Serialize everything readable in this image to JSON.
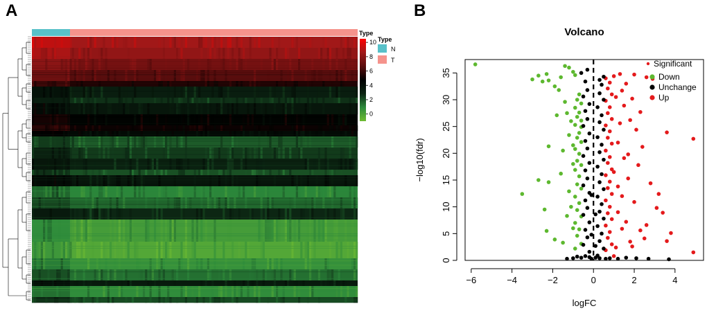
{
  "panels": {
    "a": "A",
    "b": "B"
  },
  "chart_data": [
    {
      "type": "heatmap",
      "panel": "A",
      "annotation_title": "Type",
      "groups": [
        {
          "name": "N",
          "color": "#58C1C9",
          "share": 0.117
        },
        {
          "name": "T",
          "color": "#F5938C",
          "share": 0.883
        }
      ],
      "colorbar": {
        "title": "Type",
        "ticks": [
          10,
          8,
          6,
          4,
          2,
          0
        ],
        "range": [
          -1,
          10.5
        ],
        "colors": [
          "#6FBB33",
          "#2C8A3C",
          "#0B2412",
          "#000000",
          "#5A0D0D",
          "#A01818",
          "#FF0000"
        ]
      },
      "gene_bands": [
        {
          "level": 8.6,
          "weight": 2
        },
        {
          "level": 8.2,
          "weight": 2
        },
        {
          "level": 7.4,
          "weight": 2
        },
        {
          "level": 6.6,
          "weight": 2
        },
        {
          "level": 5.4,
          "weight": 1
        },
        {
          "level": 3.2,
          "weight": 2
        },
        {
          "level": 2.6,
          "weight": 1
        },
        {
          "level": 3.6,
          "weight": 2
        },
        {
          "level": 4.6,
          "weight": 2
        },
        {
          "level": 5.0,
          "weight": 1
        },
        {
          "level": 4.2,
          "weight": 1
        },
        {
          "level": 1.8,
          "weight": 2
        },
        {
          "level": 2.4,
          "weight": 2
        },
        {
          "level": 3.0,
          "weight": 2
        },
        {
          "level": 2.0,
          "weight": 1
        },
        {
          "level": 3.6,
          "weight": 2
        },
        {
          "level": 1.0,
          "weight": 2
        },
        {
          "level": 1.6,
          "weight": 2
        },
        {
          "level": 2.8,
          "weight": 2
        },
        {
          "level": 0.2,
          "weight": 4
        },
        {
          "level": -0.2,
          "weight": 3
        },
        {
          "level": 0.6,
          "weight": 2
        },
        {
          "level": 1.4,
          "weight": 2
        },
        {
          "level": 3.4,
          "weight": 1
        },
        {
          "level": 0.8,
          "weight": 2
        },
        {
          "level": 2.2,
          "weight": 1
        }
      ]
    },
    {
      "type": "scatter",
      "panel": "B",
      "title": "Volcano",
      "xlabel": "logFC",
      "ylabel": "−log10(fdr)",
      "xlim": [
        -6.3,
        5.4
      ],
      "ylim": [
        0,
        37.5
      ],
      "xticks": [
        -6,
        -4,
        -2,
        0,
        2,
        4
      ],
      "yticks": [
        0,
        5,
        10,
        15,
        20,
        25,
        30,
        35
      ],
      "cutoff_x": 0,
      "legend": {
        "position": "top-right",
        "title": "Significant",
        "items": [
          {
            "label": "Down",
            "color": "#5DB82F"
          },
          {
            "label": "Unchange",
            "color": "#000000"
          },
          {
            "label": "Up",
            "color": "#E41A1C"
          }
        ]
      },
      "series": [
        {
          "name": "Down",
          "color": "#5DB82F",
          "points": [
            [
              -5.8,
              36.6
            ],
            [
              -3.0,
              33.8
            ],
            [
              -2.7,
              34.5
            ],
            [
              -2.5,
              33.4
            ],
            [
              -2.3,
              34.8
            ],
            [
              -2.2,
              33.6
            ],
            [
              -1.9,
              32.5
            ],
            [
              -1.6,
              34.2
            ],
            [
              -1.4,
              36.3
            ],
            [
              -1.2,
              36.0
            ],
            [
              -1.0,
              35.2
            ],
            [
              -0.9,
              34.6
            ],
            [
              -1.7,
              31.8
            ],
            [
              -1.8,
              27.1
            ],
            [
              -2.2,
              21.3
            ],
            [
              -1.5,
              20.5
            ],
            [
              -1.6,
              16.2
            ],
            [
              -2.2,
              14.6
            ],
            [
              -2.7,
              15.0
            ],
            [
              -2.4,
              9.5
            ],
            [
              -2.3,
              5.5
            ],
            [
              -1.9,
              3.9
            ],
            [
              -1.5,
              3.3
            ],
            [
              -1.2,
              12.9
            ],
            [
              -3.5,
              12.4
            ],
            [
              -1.3,
              27.5
            ],
            [
              -1.0,
              21.5
            ],
            [
              -0.6,
              24.9
            ],
            [
              -0.7,
              31.0
            ],
            [
              -0.8,
              30.0
            ],
            [
              -0.6,
              29.3
            ],
            [
              -0.9,
              28.5
            ],
            [
              -0.7,
              27.6
            ],
            [
              -0.8,
              26.8
            ],
            [
              -0.6,
              26.1
            ],
            [
              -0.9,
              25.3
            ],
            [
              -0.7,
              23.8
            ],
            [
              -0.8,
              22.9
            ],
            [
              -0.6,
              22.1
            ],
            [
              -0.9,
              20.8
            ],
            [
              -0.7,
              19.9
            ],
            [
              -0.8,
              18.6
            ],
            [
              -0.6,
              17.8
            ],
            [
              -0.9,
              16.9
            ],
            [
              -0.7,
              15.7
            ],
            [
              -0.8,
              14.2
            ],
            [
              -0.6,
              13.4
            ],
            [
              -0.9,
              11.9
            ],
            [
              -0.7,
              10.7
            ],
            [
              -0.8,
              9.4
            ],
            [
              -0.6,
              8.2
            ],
            [
              -0.9,
              7.0
            ],
            [
              -0.7,
              5.8
            ],
            [
              -0.8,
              4.6
            ],
            [
              -0.6,
              3.1
            ],
            [
              -0.9,
              2.2
            ],
            [
              -1.1,
              26.0
            ],
            [
              -1.0,
              18.0
            ],
            [
              -1.1,
              10.0
            ],
            [
              -1.0,
              6.0
            ],
            [
              -1.3,
              8.3
            ],
            [
              -1.2,
              23.4
            ],
            [
              -1.4,
              29.6
            ]
          ]
        },
        {
          "name": "Up",
          "color": "#E41A1C",
          "points": [
            [
              4.9,
              22.7
            ],
            [
              4.9,
              1.5
            ],
            [
              3.8,
              5.1
            ],
            [
              3.6,
              3.6
            ],
            [
              3.6,
              23.9
            ],
            [
              3.4,
              8.9
            ],
            [
              3.2,
              12.4
            ],
            [
              2.9,
              33.9
            ],
            [
              2.8,
              14.4
            ],
            [
              3.1,
              9.8
            ],
            [
              2.6,
              6.6
            ],
            [
              2.5,
              4.1
            ],
            [
              2.3,
              5.6
            ],
            [
              2.0,
              34.7
            ],
            [
              2.6,
              34.2
            ],
            [
              2.1,
              24.4
            ],
            [
              2.2,
              17.8
            ],
            [
              2.0,
              10.9
            ],
            [
              1.9,
              2.6
            ],
            [
              1.7,
              19.8
            ],
            [
              1.5,
              28.9
            ],
            [
              1.4,
              12.0
            ],
            [
              1.6,
              7.2
            ],
            [
              1.8,
              26.2
            ],
            [
              1.6,
              33.0
            ],
            [
              1.3,
              34.8
            ],
            [
              1.0,
              34.4
            ],
            [
              0.6,
              34.0
            ],
            [
              0.8,
              33.2
            ],
            [
              0.7,
              32.1
            ],
            [
              0.9,
              31.0
            ],
            [
              0.6,
              29.8
            ],
            [
              0.8,
              28.6
            ],
            [
              0.7,
              27.5
            ],
            [
              0.9,
              26.4
            ],
            [
              0.6,
              25.2
            ],
            [
              0.8,
              24.1
            ],
            [
              0.7,
              22.9
            ],
            [
              0.9,
              21.8
            ],
            [
              0.6,
              20.5
            ],
            [
              0.8,
              19.3
            ],
            [
              0.7,
              18.2
            ],
            [
              0.9,
              17.0
            ],
            [
              0.6,
              15.9
            ],
            [
              0.8,
              14.7
            ],
            [
              0.7,
              13.5
            ],
            [
              0.9,
              12.4
            ],
            [
              0.6,
              11.2
            ],
            [
              0.8,
              10.0
            ],
            [
              0.7,
              8.8
            ],
            [
              0.9,
              7.7
            ],
            [
              0.6,
              6.5
            ],
            [
              0.8,
              5.3
            ],
            [
              0.7,
              4.2
            ],
            [
              0.9,
              3.0
            ],
            [
              0.6,
              1.9
            ],
            [
              1.1,
              30.5
            ],
            [
              1.2,
              22.0
            ],
            [
              1.0,
              16.5
            ],
            [
              1.2,
              9.0
            ],
            [
              1.1,
              2.4
            ],
            [
              1.4,
              31.7
            ],
            [
              1.3,
              25.6
            ],
            [
              1.5,
              19.1
            ],
            [
              1.2,
              13.8
            ],
            [
              1.4,
              5.9
            ],
            [
              1.7,
              15.3
            ],
            [
              1.9,
              30.2
            ],
            [
              2.3,
              27.7
            ],
            [
              2.4,
              21.2
            ],
            [
              1.8,
              3.5
            ],
            [
              1.0,
              0.8
            ]
          ]
        },
        {
          "name": "Unchange",
          "color": "#000000",
          "points": [
            [
              -0.4,
              33.4
            ],
            [
              -0.3,
              31.8
            ],
            [
              -0.5,
              30.6
            ],
            [
              -0.2,
              29.2
            ],
            [
              -0.4,
              27.9
            ],
            [
              -0.3,
              26.4
            ],
            [
              -0.5,
              25.1
            ],
            [
              -0.2,
              23.7
            ],
            [
              -0.4,
              22.3
            ],
            [
              -0.3,
              20.9
            ],
            [
              -0.5,
              19.5
            ],
            [
              -0.2,
              18.2
            ],
            [
              -0.4,
              16.8
            ],
            [
              -0.3,
              15.3
            ],
            [
              -0.5,
              14.0
            ],
            [
              -0.2,
              12.6
            ],
            [
              -0.4,
              11.2
            ],
            [
              -0.3,
              9.8
            ],
            [
              -0.5,
              8.5
            ],
            [
              -0.2,
              7.1
            ],
            [
              -0.4,
              5.7
            ],
            [
              -0.3,
              4.3
            ],
            [
              -0.5,
              2.9
            ],
            [
              -0.2,
              1.6
            ],
            [
              0.4,
              32.8
            ],
            [
              0.3,
              31.2
            ],
            [
              0.5,
              30.0
            ],
            [
              0.2,
              28.6
            ],
            [
              0.4,
              27.1
            ],
            [
              0.3,
              25.8
            ],
            [
              0.5,
              24.4
            ],
            [
              0.2,
              23.0
            ],
            [
              0.4,
              21.6
            ],
            [
              0.3,
              20.2
            ],
            [
              0.5,
              18.8
            ],
            [
              0.2,
              17.5
            ],
            [
              0.4,
              16.1
            ],
            [
              0.3,
              14.6
            ],
            [
              0.5,
              13.3
            ],
            [
              0.2,
              11.9
            ],
            [
              0.4,
              10.5
            ],
            [
              0.3,
              9.1
            ],
            [
              0.5,
              7.8
            ],
            [
              0.2,
              6.4
            ],
            [
              0.4,
              5.0
            ],
            [
              0.3,
              3.6
            ],
            [
              0.5,
              2.2
            ],
            [
              0.2,
              0.9
            ],
            [
              -0.1,
              0.3
            ],
            [
              0.1,
              0.5
            ],
            [
              -0.2,
              0.6
            ],
            [
              0.3,
              0.4
            ],
            [
              -0.4,
              0.8
            ],
            [
              0.6,
              0.3
            ],
            [
              -0.6,
              0.5
            ],
            [
              0.8,
              0.4
            ],
            [
              -0.8,
              0.7
            ],
            [
              1.2,
              0.3
            ],
            [
              1.6,
              0.5
            ],
            [
              2.1,
              0.4
            ],
            [
              2.7,
              0.3
            ],
            [
              3.7,
              0.2
            ],
            [
              -1.0,
              0.4
            ],
            [
              -1.3,
              0.3
            ],
            [
              -0.1,
              4.8
            ],
            [
              0.1,
              8.6
            ],
            [
              -0.1,
              12.2
            ],
            [
              0.1,
              2.7
            ],
            [
              -0.6,
              35.0
            ],
            [
              0.5,
              34.3
            ],
            [
              -0.3,
              35.6
            ],
            [
              0.3,
              33.7
            ]
          ]
        }
      ]
    }
  ]
}
